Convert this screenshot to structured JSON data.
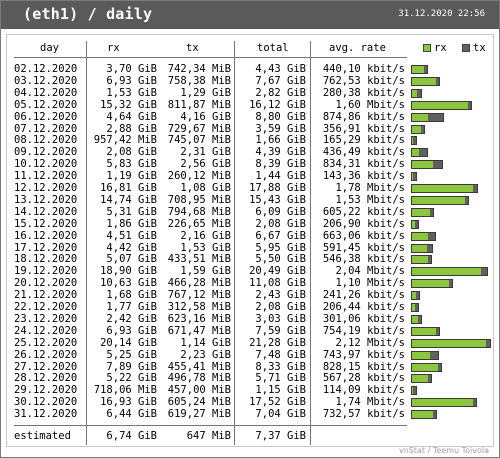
{
  "title": "(eth1) / daily",
  "datetime": "31.12.2020 22:56",
  "columns": {
    "day": "day",
    "rx": "rx",
    "tx": "tx",
    "total": "total",
    "rate": "avg. rate"
  },
  "legend": {
    "rx": "rx",
    "tx": "tx"
  },
  "colors": {
    "rx": "#8cc63f",
    "tx": "#606060",
    "header": "#5a5a5a"
  },
  "rows": [
    {
      "day": "02.12.2020",
      "rx": "3,70 GiB",
      "tx": "742,34 MiB",
      "total": "4,43 GiB",
      "rate": "440,10 kbit/s",
      "rx_gib": 3.7,
      "tx_gib": 0.725
    },
    {
      "day": "03.12.2020",
      "rx": "6,93 GiB",
      "tx": "758,38 MiB",
      "total": "7,67 GiB",
      "rate": "762,53 kbit/s",
      "rx_gib": 6.93,
      "tx_gib": 0.741
    },
    {
      "day": "04.12.2020",
      "rx": "1,53 GiB",
      "tx": "1,29 GiB",
      "total": "2,82 GiB",
      "rate": "280,38 kbit/s",
      "rx_gib": 1.53,
      "tx_gib": 1.29
    },
    {
      "day": "05.12.2020",
      "rx": "15,32 GiB",
      "tx": "811,87 MiB",
      "total": "16,12 GiB",
      "rate": "1,60 Mbit/s",
      "rx_gib": 15.32,
      "tx_gib": 0.793
    },
    {
      "day": "06.12.2020",
      "rx": "4,64 GiB",
      "tx": "4,16 GiB",
      "total": "8,80 GiB",
      "rate": "874,86 kbit/s",
      "rx_gib": 4.64,
      "tx_gib": 4.16
    },
    {
      "day": "07.12.2020",
      "rx": "2,88 GiB",
      "tx": "729,67 MiB",
      "total": "3,59 GiB",
      "rate": "356,91 kbit/s",
      "rx_gib": 2.88,
      "tx_gib": 0.713
    },
    {
      "day": "08.12.2020",
      "rx": "957,42 MiB",
      "tx": "745,07 MiB",
      "total": "1,66 GiB",
      "rate": "165,29 kbit/s",
      "rx_gib": 0.935,
      "tx_gib": 0.728
    },
    {
      "day": "09.12.2020",
      "rx": "2,08 GiB",
      "tx": "2,31 GiB",
      "total": "4,39 GiB",
      "rate": "436,49 kbit/s",
      "rx_gib": 2.08,
      "tx_gib": 2.31
    },
    {
      "day": "10.12.2020",
      "rx": "5,83 GiB",
      "tx": "2,56 GiB",
      "total": "8,39 GiB",
      "rate": "834,31 kbit/s",
      "rx_gib": 5.83,
      "tx_gib": 2.56
    },
    {
      "day": "11.12.2020",
      "rx": "1,19 GiB",
      "tx": "260,12 MiB",
      "total": "1,44 GiB",
      "rate": "143,36 kbit/s",
      "rx_gib": 1.19,
      "tx_gib": 0.254
    },
    {
      "day": "12.12.2020",
      "rx": "16,81 GiB",
      "tx": "1,08 GiB",
      "total": "17,88 GiB",
      "rate": "1,78 Mbit/s",
      "rx_gib": 16.81,
      "tx_gib": 1.08
    },
    {
      "day": "13.12.2020",
      "rx": "14,74 GiB",
      "tx": "708,95 MiB",
      "total": "15,43 GiB",
      "rate": "1,53 Mbit/s",
      "rx_gib": 14.74,
      "tx_gib": 0.692
    },
    {
      "day": "14.12.2020",
      "rx": "5,31 GiB",
      "tx": "794,68 MiB",
      "total": "6,09 GiB",
      "rate": "605,22 kbit/s",
      "rx_gib": 5.31,
      "tx_gib": 0.776
    },
    {
      "day": "15.12.2020",
      "rx": "1,86 GiB",
      "tx": "226,65 MiB",
      "total": "2,08 GiB",
      "rate": "206,90 kbit/s",
      "rx_gib": 1.86,
      "tx_gib": 0.221
    },
    {
      "day": "16.12.2020",
      "rx": "4,51 GiB",
      "tx": "2,16 GiB",
      "total": "6,67 GiB",
      "rate": "663,06 kbit/s",
      "rx_gib": 4.51,
      "tx_gib": 2.16
    },
    {
      "day": "17.12.2020",
      "rx": "4,42 GiB",
      "tx": "1,53 GiB",
      "total": "5,95 GiB",
      "rate": "591,45 kbit/s",
      "rx_gib": 4.42,
      "tx_gib": 1.53
    },
    {
      "day": "18.12.2020",
      "rx": "5,07 GiB",
      "tx": "433,51 MiB",
      "total": "5,50 GiB",
      "rate": "546,38 kbit/s",
      "rx_gib": 5.07,
      "tx_gib": 0.423
    },
    {
      "day": "19.12.2020",
      "rx": "18,90 GiB",
      "tx": "1,59 GiB",
      "total": "20,49 GiB",
      "rate": "2,04 Mbit/s",
      "rx_gib": 18.9,
      "tx_gib": 1.59
    },
    {
      "day": "20.12.2020",
      "rx": "10,63 GiB",
      "tx": "466,28 MiB",
      "total": "11,08 GiB",
      "rate": "1,10 Mbit/s",
      "rx_gib": 10.63,
      "tx_gib": 0.455
    },
    {
      "day": "21.12.2020",
      "rx": "1,68 GiB",
      "tx": "767,12 MiB",
      "total": "2,43 GiB",
      "rate": "241,26 kbit/s",
      "rx_gib": 1.68,
      "tx_gib": 0.749
    },
    {
      "day": "22.12.2020",
      "rx": "1,77 GiB",
      "tx": "312,58 MiB",
      "total": "2,08 GiB",
      "rate": "206,44 kbit/s",
      "rx_gib": 1.77,
      "tx_gib": 0.305
    },
    {
      "day": "23.12.2020",
      "rx": "2,42 GiB",
      "tx": "623,16 MiB",
      "total": "3,03 GiB",
      "rate": "301,06 kbit/s",
      "rx_gib": 2.42,
      "tx_gib": 0.609
    },
    {
      "day": "24.12.2020",
      "rx": "6,93 GiB",
      "tx": "671,47 MiB",
      "total": "7,59 GiB",
      "rate": "754,19 kbit/s",
      "rx_gib": 6.93,
      "tx_gib": 0.656
    },
    {
      "day": "25.12.2020",
      "rx": "20,14 GiB",
      "tx": "1,14 GiB",
      "total": "21,28 GiB",
      "rate": "2,12 Mbit/s",
      "rx_gib": 20.14,
      "tx_gib": 1.14
    },
    {
      "day": "26.12.2020",
      "rx": "5,25 GiB",
      "tx": "2,23 GiB",
      "total": "7,48 GiB",
      "rate": "743,97 kbit/s",
      "rx_gib": 5.25,
      "tx_gib": 2.23
    },
    {
      "day": "27.12.2020",
      "rx": "7,89 GiB",
      "tx": "455,41 MiB",
      "total": "8,33 GiB",
      "rate": "828,15 kbit/s",
      "rx_gib": 7.89,
      "tx_gib": 0.445
    },
    {
      "day": "28.12.2020",
      "rx": "5,22 GiB",
      "tx": "496,78 MiB",
      "total": "5,71 GiB",
      "rate": "567,28 kbit/s",
      "rx_gib": 5.22,
      "tx_gib": 0.485
    },
    {
      "day": "29.12.2020",
      "rx": "718,06 MiB",
      "tx": "457,00 MiB",
      "total": "1,15 GiB",
      "rate": "114,09 kbit/s",
      "rx_gib": 0.701,
      "tx_gib": 0.446
    },
    {
      "day": "30.12.2020",
      "rx": "16,93 GiB",
      "tx": "605,24 MiB",
      "total": "17,52 GiB",
      "rate": "1,74 Mbit/s",
      "rx_gib": 16.93,
      "tx_gib": 0.591
    },
    {
      "day": "31.12.2020",
      "rx": "6,44 GiB",
      "tx": "619,27 MiB",
      "total": "7,04 GiB",
      "rate": "732,57 kbit/s",
      "rx_gib": 6.44,
      "tx_gib": 0.605
    }
  ],
  "estimated": {
    "label": "estimated",
    "rx": "6,74 GiB",
    "tx": "647 MiB",
    "total": "7,37 GiB"
  },
  "footer": "vnStat / Teemu Toivola"
}
